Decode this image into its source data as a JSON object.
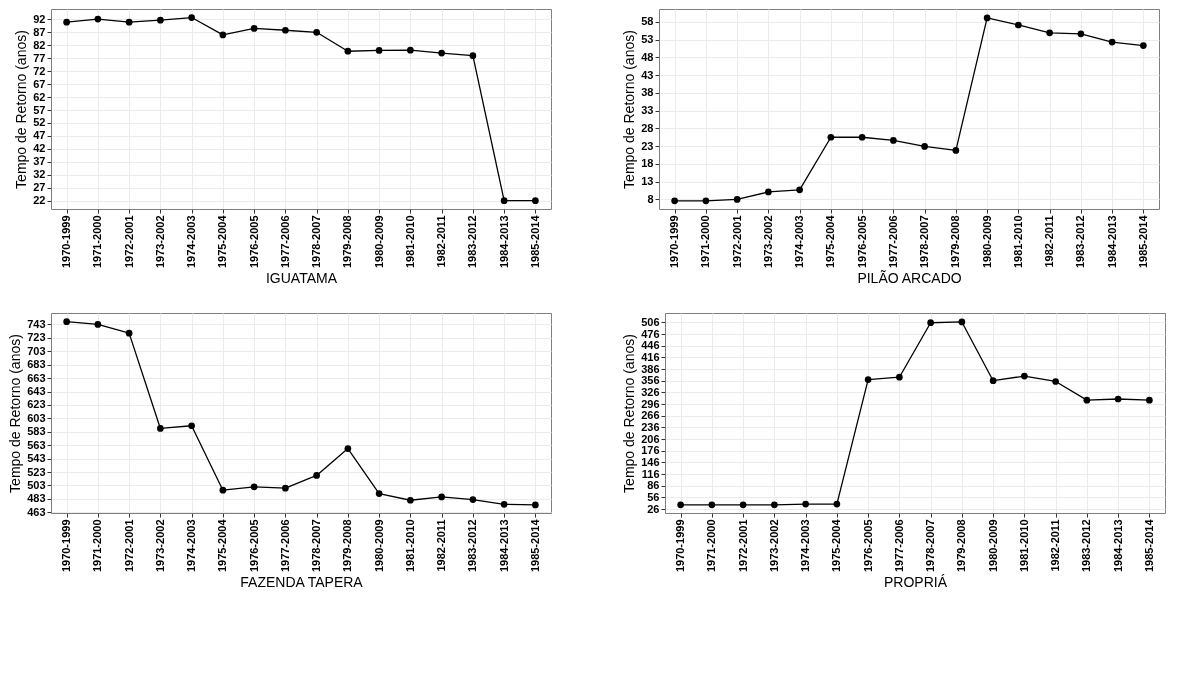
{
  "chart_data": [
    {
      "type": "line",
      "xlabel": "IGUATAMA",
      "ylabel": "Tempo de Retorno (anos)",
      "categories": [
        "1970-1999",
        "1971-2000",
        "1972-2001",
        "1973-2002",
        "1974-2003",
        "1975-2004",
        "1976-2005",
        "1977-2006",
        "1978-2007",
        "1979-2008",
        "1980-2009",
        "1981-2010",
        "1982-2011",
        "1983-2012",
        "1984-2013",
        "1985-2014"
      ],
      "series": [
        {
          "color": "#000000",
          "values": [
            90.9,
            92.1,
            90.9,
            91.7,
            92.7,
            86,
            88.5,
            87.8,
            87,
            79.7,
            80,
            80.1,
            79,
            78,
            22,
            22
          ]
        }
      ],
      "ylim": [
        18.8,
        96
      ],
      "yticks": [
        22,
        27,
        32,
        37,
        42,
        47,
        52,
        57,
        62,
        67,
        72,
        77,
        82,
        87,
        92
      ],
      "grid": true,
      "marker": "circle",
      "line_style": "solid"
    },
    {
      "type": "line",
      "xlabel": "PILÃO ARCADO",
      "ylabel": "Tempo de Retorno (anos)",
      "categories": [
        "1970-1999",
        "1971-2000",
        "1972-2001",
        "1973-2002",
        "1974-2003",
        "1975-2004",
        "1976-2005",
        "1977-2006",
        "1978-2007",
        "1979-2008",
        "1980-2009",
        "1981-2010",
        "1982-2011",
        "1983-2012",
        "1984-2013",
        "1985-2014"
      ],
      "series": [
        {
          "color": "#000000",
          "values": [
            7.6,
            7.6,
            8,
            10.1,
            10.7,
            25.5,
            25.5,
            24.6,
            22.9,
            21.8,
            59.1,
            57.1,
            54.9,
            54.6,
            52.3,
            51.3
          ]
        }
      ],
      "ylim": [
        5.3,
        61.6
      ],
      "yticks": [
        8,
        13,
        18,
        23,
        28,
        33,
        38,
        43,
        48,
        53,
        58
      ],
      "grid": true,
      "marker": "circle",
      "line_style": "solid"
    },
    {
      "type": "line",
      "xlabel": "FAZENDA TAPERA",
      "ylabel": "Tempo de Retorno (anos)",
      "categories": [
        "1970-1999",
        "1971-2000",
        "1972-2001",
        "1973-2002",
        "1974-2003",
        "1975-2004",
        "1976-2005",
        "1977-2006",
        "1978-2007",
        "1979-2008",
        "1980-2009",
        "1981-2010",
        "1982-2011",
        "1983-2012",
        "1984-2013",
        "1985-2014"
      ],
      "series": [
        {
          "color": "#000000",
          "values": [
            747,
            743,
            730,
            588,
            592,
            496,
            501,
            499,
            518,
            558,
            491,
            481,
            486,
            482,
            475,
            474
          ]
        }
      ],
      "ylim": [
        462,
        760
      ],
      "yticks": [
        463,
        483,
        503,
        523,
        543,
        563,
        583,
        603,
        623,
        643,
        663,
        683,
        703,
        723,
        743
      ],
      "grid": true,
      "marker": "circle",
      "line_style": "solid"
    },
    {
      "type": "line",
      "xlabel": "PROPRIÁ",
      "ylabel": "Tempo de Retorno (anos)",
      "categories": [
        "1970-1999",
        "1971-2000",
        "1972-2001",
        "1973-2002",
        "1974-2003",
        "1975-2004",
        "1976-2005",
        "1977-2006",
        "1978-2007",
        "1979-2008",
        "1980-2009",
        "1981-2010",
        "1982-2011",
        "1983-2012",
        "1984-2013",
        "1985-2014"
      ],
      "series": [
        {
          "color": "#000000",
          "values": [
            37,
            37,
            37,
            37,
            39,
            39,
            359,
            365,
            505,
            507,
            356,
            368,
            354,
            306,
            309,
            306
          ]
        }
      ],
      "ylim": [
        16,
        530
      ],
      "yticks": [
        26,
        56,
        86,
        116,
        146,
        176,
        206,
        236,
        266,
        296,
        326,
        356,
        386,
        416,
        446,
        476,
        506
      ],
      "grid": true,
      "marker": "circle",
      "line_style": "solid"
    }
  ]
}
